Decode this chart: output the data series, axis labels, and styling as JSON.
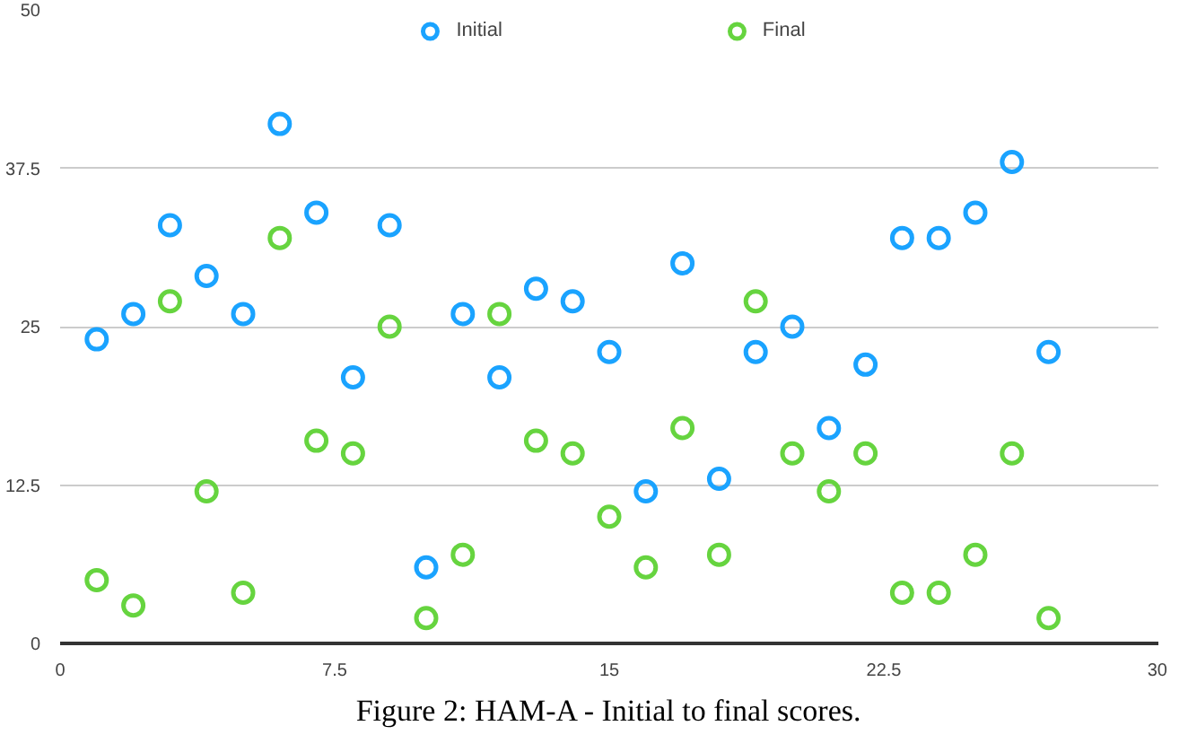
{
  "chart_data": {
    "type": "scatter",
    "marker": "circle",
    "legend": "top",
    "grid": "y",
    "x": [
      1,
      2,
      3,
      4,
      5,
      6,
      7,
      8,
      9,
      10,
      11,
      12,
      13,
      14,
      15,
      16,
      17,
      18,
      19,
      20,
      21,
      22,
      23,
      24,
      25,
      26,
      27
    ],
    "series": [
      {
        "name": "Initial",
        "color": "#1aa3ff",
        "values": [
          24,
          26,
          33,
          29,
          26,
          41,
          34,
          21,
          33,
          6,
          26,
          21,
          28,
          27,
          23,
          12,
          30,
          13,
          23,
          25,
          17,
          22,
          32,
          32,
          34,
          38,
          23
        ]
      },
      {
        "name": "Final",
        "color": "#66d43f",
        "values": [
          5,
          3,
          27,
          12,
          4,
          32,
          16,
          15,
          25,
          2,
          7,
          26,
          16,
          15,
          10,
          6,
          17,
          7,
          27,
          15,
          12,
          15,
          4,
          4,
          7,
          15,
          2
        ]
      }
    ],
    "xlim": [
      0,
      30
    ],
    "xticks": [
      0,
      7.5,
      15,
      22.5,
      30
    ],
    "ylim": [
      0,
      50
    ],
    "yticks": [
      0,
      12.5,
      25,
      37.5,
      50
    ],
    "annotations": [
      "Figure 2: HAM-A - Initial to final scores."
    ]
  }
}
